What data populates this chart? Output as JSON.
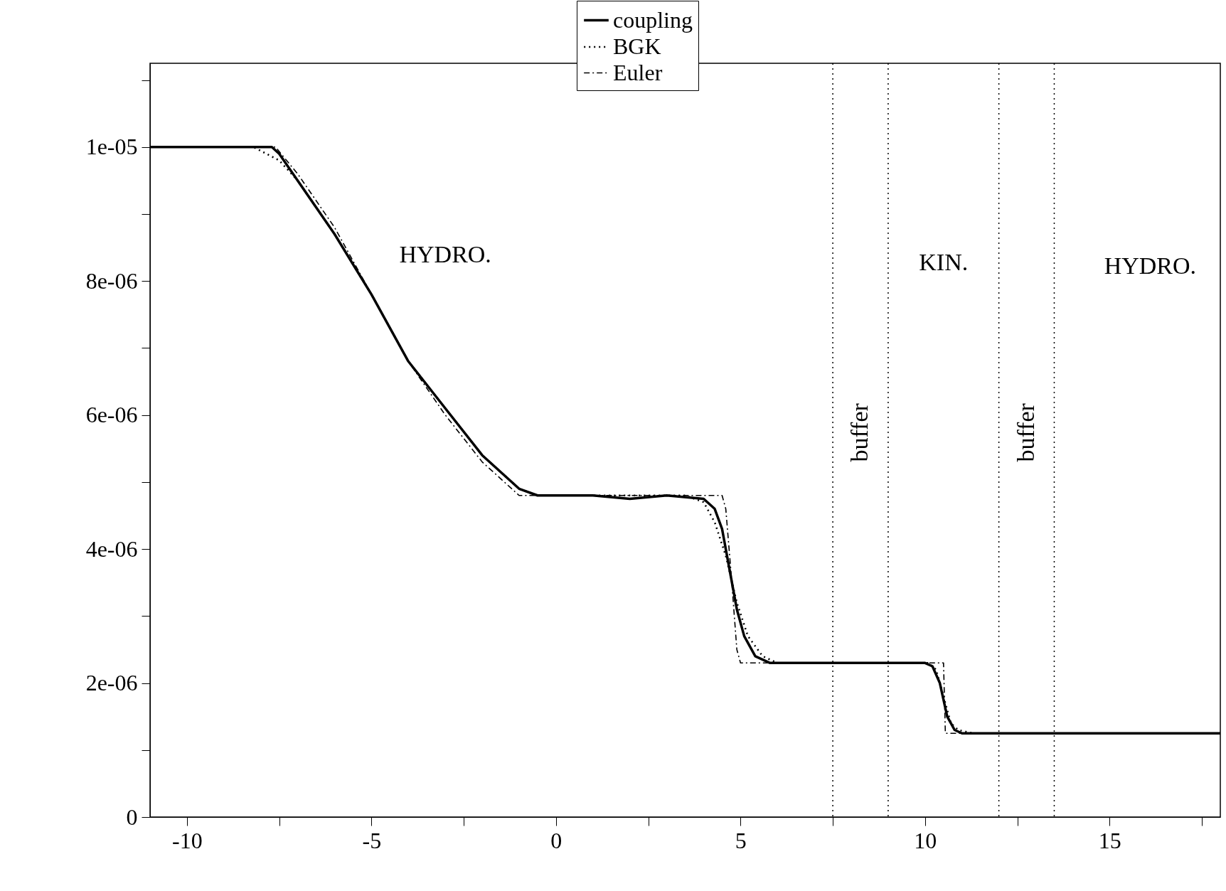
{
  "chart_data": {
    "type": "line",
    "legend": "top",
    "xlim": [
      -11,
      18
    ],
    "xticks": [
      -10,
      {
        "value": -7.5,
        "label": null
      },
      -5,
      {
        "value": -2.5,
        "label": null
      },
      0,
      {
        "value": 2.5,
        "label": null
      },
      5,
      {
        "value": 7.5,
        "label": null
      },
      10,
      {
        "value": 12.5,
        "label": null
      },
      15,
      {
        "value": 17.5,
        "label": null
      }
    ],
    "ylim": [
      0,
      1.125e-05
    ],
    "yticks": [
      0,
      {
        "value": 1e-06,
        "label": null
      },
      {
        "value": 2e-06,
        "label": "2e-06"
      },
      {
        "value": 3e-06,
        "label": null
      },
      {
        "value": 4e-06,
        "label": "4e-06"
      },
      {
        "value": 5e-06,
        "label": null
      },
      {
        "value": 6e-06,
        "label": "6e-06"
      },
      {
        "value": 7e-06,
        "label": null
      },
      {
        "value": 8e-06,
        "label": "8e-06"
      },
      {
        "value": 9e-06,
        "label": null
      },
      {
        "value": 1e-05,
        "label": "1e-05"
      },
      {
        "value": 1.1e-05,
        "label": null
      }
    ],
    "series": [
      {
        "name": "coupling",
        "color": "#000000",
        "line_style": "solid",
        "x": [
          -11,
          -8,
          -7.7,
          -7.5,
          -7,
          -6,
          -5,
          -4,
          -3,
          -2,
          -1,
          -0.5,
          0,
          1,
          2,
          3,
          4,
          4.3,
          4.5,
          4.7,
          4.9,
          5.1,
          5.4,
          5.8,
          6.5,
          10,
          10.2,
          10.4,
          10.6,
          10.8,
          11,
          11.5,
          18
        ],
        "values": [
          1e-05,
          1e-05,
          1e-05,
          9.9e-06,
          9.5e-06,
          8.7e-06,
          7.8e-06,
          6.8e-06,
          6.1e-06,
          5.4e-06,
          4.9e-06,
          4.8e-06,
          4.8e-06,
          4.8e-06,
          4.75e-06,
          4.8e-06,
          4.75e-06,
          4.6e-06,
          4.3e-06,
          3.7e-06,
          3.1e-06,
          2.7e-06,
          2.4e-06,
          2.3e-06,
          2.3e-06,
          2.3e-06,
          2.25e-06,
          2e-06,
          1.5e-06,
          1.3e-06,
          1.25e-06,
          1.25e-06,
          1.25e-06
        ]
      },
      {
        "name": "BGK",
        "color": "#000000",
        "line_style": "dotted",
        "x": [
          -11,
          -8.2,
          -7.5,
          -7,
          -6,
          -5,
          -4,
          -3,
          -2,
          -1,
          -0.5,
          0,
          2,
          3.5,
          4,
          4.3,
          4.6,
          4.9,
          5.2,
          5.6,
          6,
          7,
          10.1,
          10.3,
          10.5,
          10.7,
          10.9,
          11.3,
          18
        ],
        "values": [
          1e-05,
          1e-05,
          9.8e-06,
          9.5e-06,
          8.7e-06,
          7.8e-06,
          6.8e-06,
          6.1e-06,
          5.4e-06,
          4.9e-06,
          4.8e-06,
          4.8e-06,
          4.8e-06,
          4.8e-06,
          4.7e-06,
          4.4e-06,
          3.9e-06,
          3.2e-06,
          2.7e-06,
          2.4e-06,
          2.3e-06,
          2.3e-06,
          2.3e-06,
          2.2e-06,
          1.8e-06,
          1.4e-06,
          1.3e-06,
          1.25e-06,
          1.25e-06
        ]
      },
      {
        "name": "Euler",
        "color": "#000000",
        "line_style": "dashed",
        "x": [
          -11,
          -7.6,
          -7,
          -6,
          -5,
          -4,
          -3,
          -2,
          -1,
          -0.6,
          4.5,
          4.6,
          4.75,
          4.9,
          5,
          10.5,
          10.55,
          18
        ],
        "values": [
          1e-05,
          1e-05,
          9.6e-06,
          8.8e-06,
          7.8e-06,
          6.8e-06,
          6e-06,
          5.3e-06,
          4.8e-06,
          4.8e-06,
          4.8e-06,
          4.6e-06,
          3.6e-06,
          2.5e-06,
          2.3e-06,
          2.3e-06,
          1.25e-06,
          1.25e-06
        ]
      }
    ],
    "ref_lines": [
      {
        "axis": "x",
        "value": 7.5,
        "line_style": "dotted"
      },
      {
        "axis": "x",
        "value": 9,
        "line_style": "dotted"
      },
      {
        "axis": "x",
        "value": 12,
        "line_style": "dotted"
      },
      {
        "axis": "x",
        "value": 13.5,
        "line_style": "dotted"
      }
    ],
    "annotations": [
      "HYDRO.",
      "KIN.",
      "HYDRO.",
      "buffer",
      "buffer"
    ]
  }
}
